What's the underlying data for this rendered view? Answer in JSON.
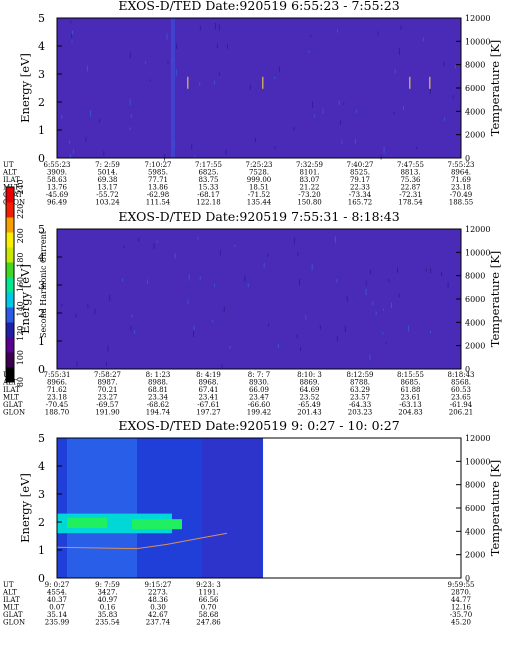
{
  "colorbar": {
    "title": "Second Harmonic Current",
    "ticks": [
      "240",
      "220",
      "200",
      "180",
      "160",
      "140",
      "120",
      "100",
      "80"
    ],
    "min": 80,
    "max": 240
  },
  "orbit_labels": [
    "UT",
    "ALT",
    "ILAT",
    "MLT",
    "GLAT",
    "GLON"
  ],
  "palette": {
    "bg_low": "#3c1a9c",
    "field": "#4a2bb8",
    "colorbar": [
      "#000000",
      "#3c0050",
      "#5a0090",
      "#1f1fa8",
      "#2b5ce8",
      "#00c8e8",
      "#00e890",
      "#40d820",
      "#c8e800",
      "#f8f000",
      "#f8a000",
      "#f02000",
      "#e80000"
    ]
  },
  "chart_data": [
    {
      "type": "heatmap",
      "title": "EXOS-D/TED   Date:920519   6:55:23 - 7:55:23",
      "ylabel": "Energy [eV]",
      "y2label": "Temperature [K]",
      "ylim": [
        0,
        5
      ],
      "y2lim": [
        0,
        12000
      ],
      "yticks": [
        "0",
        "1",
        "2",
        "3",
        "4",
        "5"
      ],
      "y2ticks": [
        "0",
        "2000",
        "4000",
        "6000",
        "8000",
        "10000",
        "12000"
      ],
      "orbit": [
        [
          "6:55:23",
          "3909.",
          "58.63",
          "13.76",
          "-45.69",
          "96.49"
        ],
        [
          "7: 2:59",
          "5014.",
          "69.38",
          "13.17",
          "-55.72",
          "103.24"
        ],
        [
          "7:10:27",
          "5985.",
          "77.71",
          "13.86",
          "-62.98",
          "111.54"
        ],
        [
          "7:17:55",
          "6825.",
          "83.75",
          "15.33",
          "-68.17",
          "122.18"
        ],
        [
          "7:25:23",
          "7528.",
          "999.00",
          "18.51",
          "-71.52",
          "135.44"
        ],
        [
          "7:32:59",
          "8101.",
          "83.07",
          "21.22",
          "-73.20",
          "150.80"
        ],
        [
          "7:40:27",
          "8525.",
          "79.17",
          "22.33",
          "-73.34",
          "165.72"
        ],
        [
          "7:47:55",
          "8813.",
          "75.36",
          "22.87",
          "-72.31",
          "178.54"
        ],
        [
          "7:55:23",
          "8964.",
          "71.69",
          "23.18",
          "-70.49",
          "188.55"
        ]
      ]
    },
    {
      "type": "heatmap",
      "title": "EXOS-D/TED   Date:920519   7:55:31 - 8:18:43",
      "ylabel": "Energy [eV]",
      "y2label": "Temperature [K]",
      "ylim": [
        0,
        5
      ],
      "y2lim": [
        0,
        12000
      ],
      "yticks": [
        "0",
        "1",
        "2",
        "3",
        "4",
        "5"
      ],
      "y2ticks": [
        "0",
        "2000",
        "4000",
        "6000",
        "8000",
        "10000",
        "12000"
      ],
      "orbit": [
        [
          "7:55:31",
          "8966.",
          "71.62",
          "23.18",
          "-70.45",
          "188.70"
        ],
        [
          "7:58:27",
          "8987.",
          "70.21",
          "23.27",
          "-69.57",
          "191.90"
        ],
        [
          "8: 1:23",
          "8988.",
          "68.81",
          "23.34",
          "-68.62",
          "194.74"
        ],
        [
          "8: 4:19",
          "8968.",
          "67.41",
          "23.41",
          "-67.61",
          "197.27"
        ],
        [
          "8: 7: 7",
          "8930.",
          "66.09",
          "23.47",
          "-66.60",
          "199.42"
        ],
        [
          "8:10: 3",
          "8869.",
          "64.69",
          "23.52",
          "-65.49",
          "201.43"
        ],
        [
          "8:12:59",
          "8788.",
          "63.29",
          "23.57",
          "-64.33",
          "203.23"
        ],
        [
          "8:15:55",
          "8685.",
          "61.88",
          "23.61",
          "-63.13",
          "204.83"
        ],
        [
          "8:18:43",
          "8568.",
          "60.53",
          "23.65",
          "-61.94",
          "206.21"
        ]
      ]
    },
    {
      "type": "heatmap",
      "title": "EXOS-D/TED   Date:920519   9: 0:27 - 10: 0:27",
      "ylabel": "Energy [eV]",
      "y2label": "Temperature [K]",
      "ylim": [
        0,
        5
      ],
      "y2lim": [
        0,
        12000
      ],
      "yticks": [
        "0",
        "1",
        "2",
        "3",
        "4",
        "5"
      ],
      "y2ticks": [
        "0",
        "2000",
        "4000",
        "6000",
        "8000",
        "10000",
        "12000"
      ],
      "data_end_fraction": 0.51,
      "orbit": [
        [
          "9: 0:27",
          "4554.",
          "40.37",
          "0.07",
          "35.14",
          "235.99"
        ],
        [
          "9: 7:59",
          "3427.",
          "40.97",
          "0.16",
          "35.83",
          "235.54"
        ],
        [
          "9:15:27",
          "2273.",
          "48.36",
          "0.30",
          "42.67",
          "237.74"
        ],
        [
          "9:23: 3",
          "1191.",
          "66.56",
          "0.70",
          "58.68",
          "247.86"
        ],
        [
          "",
          "",
          "",
          "",
          "",
          ""
        ],
        [
          "",
          "",
          "",
          "",
          "",
          ""
        ],
        [
          "",
          "",
          "",
          "",
          "",
          ""
        ],
        [
          "",
          "",
          "",
          "",
          "",
          ""
        ],
        [
          "9:59:55",
          "2870.",
          "44.77",
          "12.16",
          "-35.70",
          "45.20"
        ]
      ]
    }
  ]
}
